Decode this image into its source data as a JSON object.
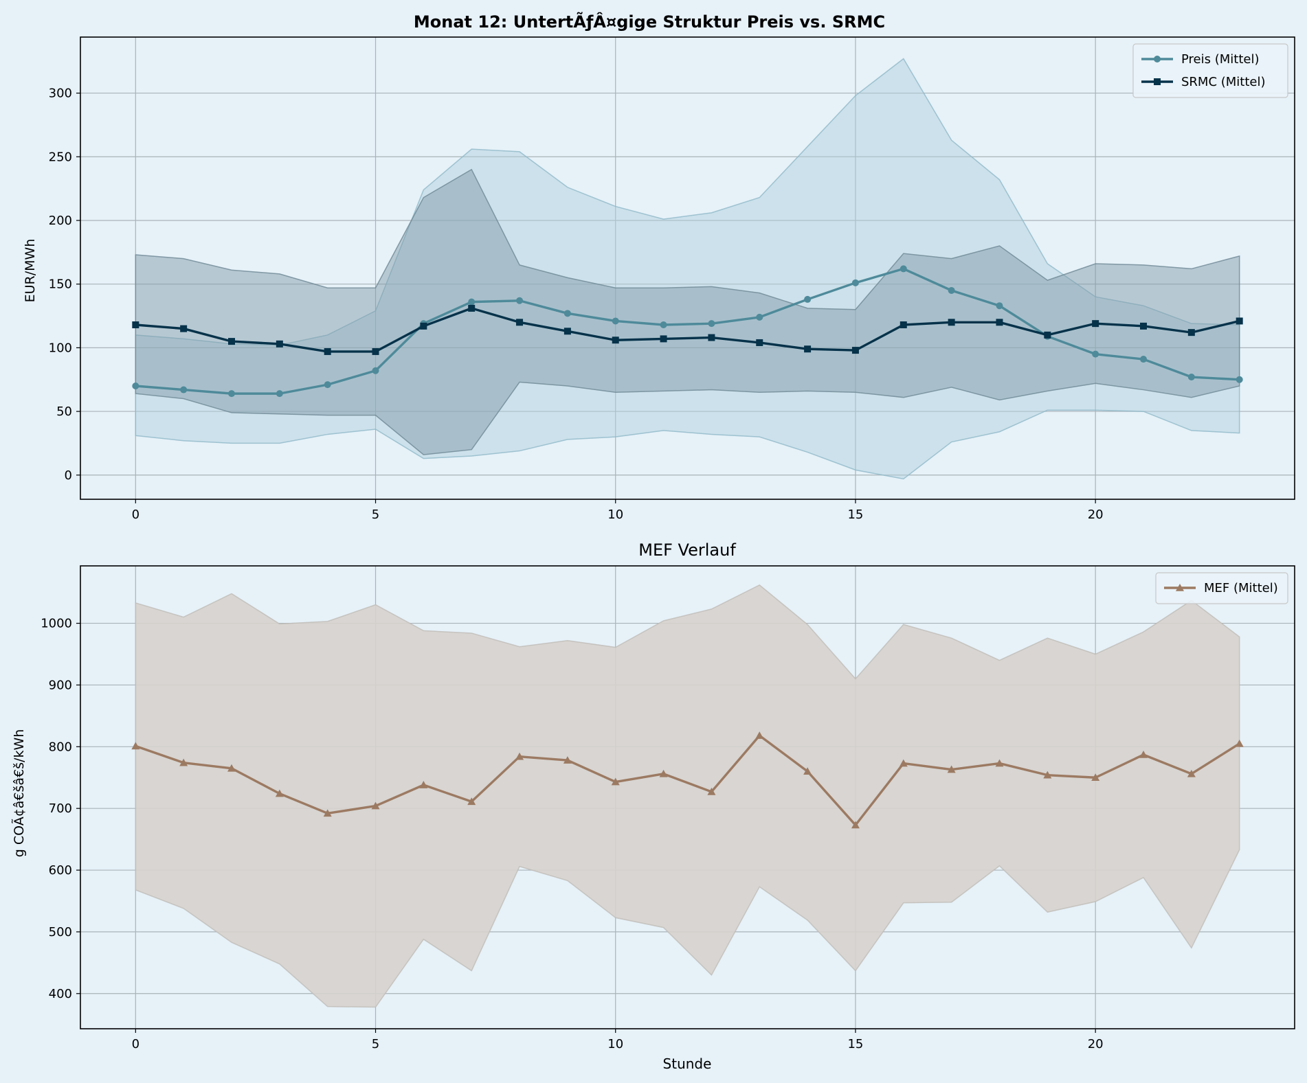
{
  "figure": {
    "background": "#e6f1f8"
  },
  "chart_data": [
    {
      "type": "line",
      "title": "Monat 12: UntertÃƒÂ¤gige Struktur Preis vs. SRMC",
      "xlabel": "",
      "ylabel": "EUR/MWh",
      "xlim": [
        -1.15,
        24.15
      ],
      "ylim": [
        -19,
        344
      ],
      "xticks": [
        0,
        5,
        10,
        15,
        20
      ],
      "yticks": [
        0,
        50,
        100,
        150,
        200,
        250,
        300
      ],
      "grid": true,
      "legend_position": "top-right",
      "x": [
        0,
        1,
        2,
        3,
        4,
        5,
        6,
        7,
        8,
        9,
        10,
        11,
        12,
        13,
        14,
        15,
        16,
        17,
        18,
        19,
        20,
        21,
        22,
        23
      ],
      "series": [
        {
          "name": "Preis (Mittel)",
          "color": "#4e8a9a",
          "marker": "circle",
          "values": [
            70,
            67,
            64,
            64,
            71,
            82,
            119,
            136,
            137,
            127,
            121,
            118,
            119,
            124,
            138,
            151,
            162,
            145,
            133,
            109,
            95,
            91,
            77,
            75
          ],
          "band_lower": [
            31,
            27,
            25,
            25,
            32,
            36,
            13,
            15,
            19,
            28,
            30,
            35,
            32,
            30,
            18,
            4,
            -3,
            26,
            34,
            51,
            51,
            50,
            35,
            33
          ],
          "band_upper": [
            110,
            107,
            103,
            102,
            110,
            129,
            224,
            256,
            254,
            226,
            211,
            201,
            206,
            218,
            258,
            298,
            327,
            263,
            232,
            166,
            140,
            133,
            119,
            118
          ]
        },
        {
          "name": "SRMC (Mittel)",
          "color": "#06324a",
          "marker": "square",
          "values": [
            118,
            115,
            105,
            103,
            97,
            97,
            117,
            131,
            120,
            113,
            106,
            107,
            108,
            104,
            99,
            98,
            118,
            120,
            120,
            110,
            119,
            117,
            112,
            121
          ],
          "band_lower": [
            64,
            60,
            49,
            48,
            47,
            47,
            16,
            20,
            73,
            70,
            65,
            66,
            67,
            65,
            66,
            65,
            61,
            69,
            59,
            66,
            72,
            67,
            61,
            70
          ],
          "band_upper": [
            173,
            170,
            161,
            158,
            147,
            147,
            218,
            240,
            165,
            155,
            147,
            147,
            148,
            143,
            131,
            130,
            174,
            170,
            180,
            153,
            166,
            165,
            162,
            172
          ]
        }
      ]
    },
    {
      "type": "line",
      "title": "MEF Verlauf",
      "xlabel": "Stunde",
      "ylabel": "g COÃ¢â€šâ€š/kWh",
      "xlim": [
        -1.15,
        24.15
      ],
      "ylim": [
        343,
        1093
      ],
      "xticks": [
        0,
        5,
        10,
        15,
        20
      ],
      "yticks": [
        400,
        500,
        600,
        700,
        800,
        900,
        1000
      ],
      "grid": true,
      "legend_position": "top-right",
      "x": [
        0,
        1,
        2,
        3,
        4,
        5,
        6,
        7,
        8,
        9,
        10,
        11,
        12,
        13,
        14,
        15,
        16,
        17,
        18,
        19,
        20,
        21,
        22,
        23
      ],
      "series": [
        {
          "name": "MEF (Mittel)",
          "color": "#9c7a62",
          "marker": "triangle",
          "values": [
            801,
            774,
            765,
            724,
            692,
            704,
            738,
            711,
            784,
            778,
            743,
            756,
            727,
            818,
            760,
            673,
            773,
            763,
            773,
            754,
            750,
            787,
            756,
            805
          ],
          "band_lower": [
            568,
            538,
            483,
            448,
            379,
            378,
            488,
            437,
            606,
            583,
            523,
            507,
            430,
            573,
            519,
            437,
            547,
            548,
            607,
            532,
            549,
            588,
            474,
            633
          ],
          "band_upper": [
            1033,
            1010,
            1048,
            999,
            1003,
            1030,
            988,
            984,
            962,
            972,
            961,
            1004,
            1023,
            1062,
            998,
            910,
            998,
            976,
            940,
            976,
            950,
            986,
            1037,
            978
          ]
        }
      ]
    }
  ]
}
